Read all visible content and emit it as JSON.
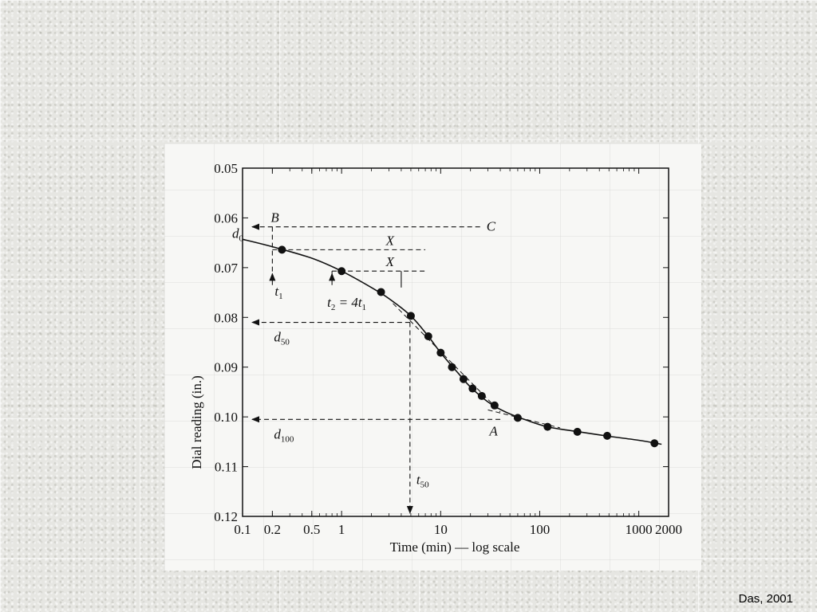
{
  "credit": "Das, 2001",
  "chart_data": {
    "type": "scatter",
    "xlabel": "Time (min) — log scale",
    "ylabel": "Dial reading (in.)",
    "x_scale": "log",
    "xlim": [
      0.1,
      2000
    ],
    "ylim": [
      0.05,
      0.12
    ],
    "y_inverted": true,
    "x_ticks": [
      {
        "value": 0.1,
        "label": "0.1"
      },
      {
        "value": 0.2,
        "label": "0.2"
      },
      {
        "value": 0.5,
        "label": "0.5"
      },
      {
        "value": 1,
        "label": "1"
      },
      {
        "value": 10,
        "label": "10"
      },
      {
        "value": 100,
        "label": "100"
      },
      {
        "value": 1000,
        "label": "1000"
      },
      {
        "value": 2000,
        "label": "2000"
      }
    ],
    "y_ticks": [
      {
        "value": 0.05,
        "label": "0.05"
      },
      {
        "value": 0.06,
        "label": "0.06"
      },
      {
        "value": 0.07,
        "label": "0.07"
      },
      {
        "value": 0.08,
        "label": "0.08"
      },
      {
        "value": 0.09,
        "label": "0.09"
      },
      {
        "value": 0.1,
        "label": "0.10"
      },
      {
        "value": 0.11,
        "label": "0.11"
      },
      {
        "value": 0.12,
        "label": "0.12"
      }
    ],
    "points": [
      {
        "x": 0.25,
        "y": 0.0664
      },
      {
        "x": 1.0,
        "y": 0.0707
      },
      {
        "x": 2.5,
        "y": 0.0749
      },
      {
        "x": 5.0,
        "y": 0.0797
      },
      {
        "x": 7.5,
        "y": 0.0838
      },
      {
        "x": 10,
        "y": 0.0871
      },
      {
        "x": 13,
        "y": 0.09
      },
      {
        "x": 17,
        "y": 0.0924
      },
      {
        "x": 21,
        "y": 0.0943
      },
      {
        "x": 26,
        "y": 0.0958
      },
      {
        "x": 35,
        "y": 0.0977
      },
      {
        "x": 60,
        "y": 0.1002
      },
      {
        "x": 120,
        "y": 0.102
      },
      {
        "x": 240,
        "y": 0.103
      },
      {
        "x": 480,
        "y": 0.1038
      },
      {
        "x": 1440,
        "y": 0.1053
      }
    ],
    "curve": [
      [
        0.1,
        0.0643
      ],
      [
        0.2,
        0.0658
      ],
      [
        0.5,
        0.0681
      ],
      [
        1.0,
        0.0707
      ],
      [
        2.0,
        0.074
      ],
      [
        3.0,
        0.0762
      ],
      [
        5.0,
        0.0797
      ],
      [
        7.5,
        0.0838
      ],
      [
        10,
        0.0871
      ],
      [
        15,
        0.0912
      ],
      [
        20,
        0.094
      ],
      [
        30,
        0.097
      ],
      [
        45,
        0.099
      ],
      [
        70,
        0.1005
      ],
      [
        120,
        0.102
      ],
      [
        250,
        0.103
      ],
      [
        500,
        0.1039
      ],
      [
        1000,
        0.1047
      ],
      [
        1700,
        0.1055
      ]
    ],
    "tangent_lines": [
      {
        "from": [
          3.3,
          0.0772
        ],
        "to": [
          40,
          0.099
        ]
      },
      {
        "from": [
          30,
          0.0986
        ],
        "to": [
          160,
          0.1022
        ]
      }
    ],
    "annotations": [
      {
        "name": "B",
        "label": "B"
      },
      {
        "name": "C",
        "label": "C"
      },
      {
        "name": "X1",
        "label": "X"
      },
      {
        "name": "X2",
        "label": "X"
      },
      {
        "name": "A",
        "label": "A"
      },
      {
        "name": "d0",
        "label": "d",
        "sub": "0"
      },
      {
        "name": "t1",
        "label": "t",
        "sub": "1"
      },
      {
        "name": "t2",
        "label": "t",
        "sub": "2",
        "rest": " = 4t",
        "sub2": "1"
      },
      {
        "name": "d50",
        "label": "d",
        "sub": "50"
      },
      {
        "name": "d100",
        "label": "d",
        "sub": "100"
      },
      {
        "name": "t50",
        "label": "t",
        "sub": "50"
      }
    ],
    "reference_values": {
      "d0": 0.0618,
      "B_time": 0.2,
      "t1": 0.2,
      "t2": 0.8,
      "d50": 0.081,
      "d100": 0.1005,
      "t50": 4.9
    }
  }
}
